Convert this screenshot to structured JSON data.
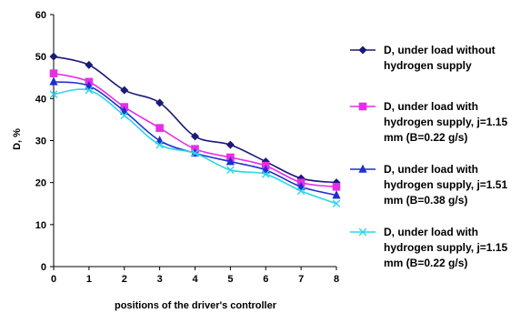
{
  "chart_data": {
    "type": "line",
    "title": "",
    "xlabel": "positions of the driver's controller",
    "ylabel": "D, %",
    "x": [
      0,
      1,
      2,
      3,
      4,
      5,
      6,
      7,
      8
    ],
    "xlim": [
      0,
      8
    ],
    "ylim": [
      0,
      60
    ],
    "yticks": [
      0,
      10,
      20,
      30,
      40,
      50,
      60
    ],
    "xticks": [
      0,
      1,
      2,
      3,
      4,
      5,
      6,
      7,
      8
    ],
    "grid": false,
    "legend_position": "right",
    "series": [
      {
        "name_lines": [
          "D, under load without",
          "hydrogen supply"
        ],
        "color": "#1a1a7a",
        "marker": "diamond",
        "values": [
          50,
          48,
          42,
          39,
          31,
          29,
          25,
          21,
          20
        ]
      },
      {
        "name_lines": [
          "D, under load with",
          "hydrogen supply, j=1.15",
          "mm (B=0.22 g/s)"
        ],
        "color": "#e62ee6",
        "marker": "square",
        "values": [
          46,
          44,
          38,
          33,
          28,
          26,
          24,
          20,
          19
        ]
      },
      {
        "name_lines": [
          "D, under load with",
          "hydrogen supply, j=1.51",
          "mm (B=0.38 g/s)"
        ],
        "color": "#1f2fd0",
        "marker": "triangle",
        "values": [
          44,
          43,
          37,
          30,
          27,
          25,
          23,
          19,
          17
        ]
      },
      {
        "name_lines": [
          "D, under load with",
          "hydrogen supply, j=1.15",
          "mm (B=0.22 g/s)"
        ],
        "color": "#2ad6e8",
        "marker": "x",
        "values": [
          41,
          42,
          36,
          29,
          27,
          23,
          22,
          18,
          15
        ]
      }
    ]
  }
}
